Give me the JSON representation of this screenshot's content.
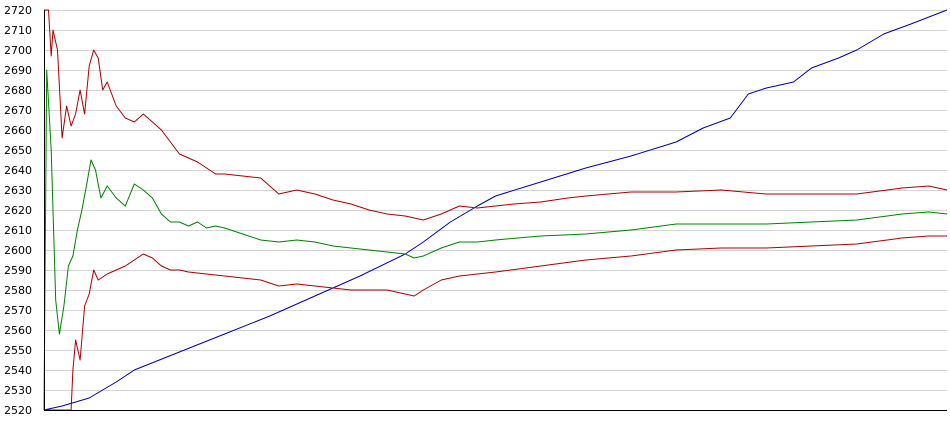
{
  "chart_data": {
    "type": "line",
    "title": "",
    "xlabel": "",
    "ylabel": "",
    "ylim": [
      2520,
      2720
    ],
    "xlim": [
      0,
      100
    ],
    "yticks": [
      2520,
      2530,
      2540,
      2550,
      2560,
      2570,
      2580,
      2590,
      2600,
      2610,
      2620,
      2630,
      2640,
      2650,
      2660,
      2670,
      2680,
      2690,
      2700,
      2710,
      2720
    ],
    "grid": "horizontal",
    "legend": "none",
    "series": [
      {
        "color": "#0000aa",
        "points": [
          [
            0,
            2520
          ],
          [
            2,
            2522
          ],
          [
            5,
            2526
          ],
          [
            8,
            2534
          ],
          [
            10,
            2540
          ],
          [
            15,
            2549
          ],
          [
            20,
            2558
          ],
          [
            25,
            2567
          ],
          [
            30,
            2577
          ],
          [
            35,
            2587
          ],
          [
            40,
            2598
          ],
          [
            42,
            2604
          ],
          [
            45,
            2614
          ],
          [
            48,
            2622
          ],
          [
            50,
            2627
          ],
          [
            55,
            2634
          ],
          [
            60,
            2641
          ],
          [
            65,
            2647
          ],
          [
            70,
            2654
          ],
          [
            73,
            2661
          ],
          [
            76,
            2666
          ],
          [
            78,
            2678
          ],
          [
            80,
            2681
          ],
          [
            83,
            2684
          ],
          [
            85,
            2691
          ],
          [
            88,
            2696
          ],
          [
            90,
            2700
          ],
          [
            93,
            2708
          ],
          [
            96,
            2713
          ],
          [
            100,
            2720
          ]
        ]
      },
      {
        "color": "#008000",
        "points": [
          [
            0,
            2520
          ],
          [
            0.3,
            2690
          ],
          [
            0.8,
            2650
          ],
          [
            1.3,
            2575
          ],
          [
            1.7,
            2558
          ],
          [
            2.2,
            2572
          ],
          [
            2.7,
            2592
          ],
          [
            3.2,
            2597
          ],
          [
            3.7,
            2610
          ],
          [
            4.2,
            2620
          ],
          [
            4.7,
            2632
          ],
          [
            5.2,
            2645
          ],
          [
            5.7,
            2640
          ],
          [
            6.3,
            2626
          ],
          [
            7,
            2632
          ],
          [
            8,
            2626
          ],
          [
            9,
            2622
          ],
          [
            10,
            2633
          ],
          [
            11,
            2630
          ],
          [
            12,
            2626
          ],
          [
            13,
            2618
          ],
          [
            14,
            2614
          ],
          [
            15,
            2614
          ],
          [
            16,
            2612
          ],
          [
            17,
            2614
          ],
          [
            18,
            2611
          ],
          [
            19,
            2612
          ],
          [
            20,
            2611
          ],
          [
            22,
            2608
          ],
          [
            24,
            2605
          ],
          [
            26,
            2604
          ],
          [
            28,
            2605
          ],
          [
            30,
            2604
          ],
          [
            32,
            2602
          ],
          [
            34,
            2601
          ],
          [
            36,
            2600
          ],
          [
            38,
            2599
          ],
          [
            40,
            2598
          ],
          [
            41,
            2596
          ],
          [
            42,
            2597
          ],
          [
            44,
            2601
          ],
          [
            46,
            2604
          ],
          [
            48,
            2604
          ],
          [
            50,
            2605
          ],
          [
            55,
            2607
          ],
          [
            60,
            2608
          ],
          [
            65,
            2610
          ],
          [
            70,
            2613
          ],
          [
            75,
            2613
          ],
          [
            80,
            2613
          ],
          [
            85,
            2614
          ],
          [
            90,
            2615
          ],
          [
            95,
            2618
          ],
          [
            98,
            2619
          ],
          [
            100,
            2618
          ]
        ]
      },
      {
        "color": "#aa0000",
        "points": [
          [
            0,
            2720
          ],
          [
            0.5,
            2720
          ],
          [
            0.8,
            2697
          ],
          [
            1,
            2710
          ],
          [
            1.5,
            2700
          ],
          [
            2,
            2656
          ],
          [
            2.5,
            2672
          ],
          [
            3,
            2662
          ],
          [
            3.5,
            2668
          ],
          [
            4,
            2680
          ],
          [
            4.5,
            2668
          ],
          [
            5,
            2692
          ],
          [
            5.5,
            2700
          ],
          [
            6,
            2696
          ],
          [
            6.5,
            2680
          ],
          [
            7,
            2684
          ],
          [
            8,
            2672
          ],
          [
            9,
            2666
          ],
          [
            10,
            2664
          ],
          [
            11,
            2668
          ],
          [
            12,
            2664
          ],
          [
            13,
            2660
          ],
          [
            14,
            2654
          ],
          [
            15,
            2648
          ],
          [
            16,
            2646
          ],
          [
            17,
            2644
          ],
          [
            18,
            2641
          ],
          [
            19,
            2638
          ],
          [
            20,
            2638
          ],
          [
            22,
            2637
          ],
          [
            24,
            2636
          ],
          [
            26,
            2628
          ],
          [
            28,
            2630
          ],
          [
            30,
            2628
          ],
          [
            32,
            2625
          ],
          [
            34,
            2623
          ],
          [
            36,
            2620
          ],
          [
            38,
            2618
          ],
          [
            40,
            2617
          ],
          [
            42,
            2615
          ],
          [
            44,
            2618
          ],
          [
            46,
            2622
          ],
          [
            48,
            2621
          ],
          [
            50,
            2622
          ],
          [
            52,
            2623
          ],
          [
            55,
            2624
          ],
          [
            58,
            2626
          ],
          [
            60,
            2627
          ],
          [
            65,
            2629
          ],
          [
            70,
            2629
          ],
          [
            75,
            2630
          ],
          [
            80,
            2628
          ],
          [
            85,
            2628
          ],
          [
            90,
            2628
          ],
          [
            95,
            2631
          ],
          [
            98,
            2632
          ],
          [
            100,
            2630
          ]
        ]
      },
      {
        "color": "#aa0000",
        "points": [
          [
            0,
            2520
          ],
          [
            2.5,
            2520
          ],
          [
            3,
            2520
          ],
          [
            3.2,
            2540
          ],
          [
            3.5,
            2555
          ],
          [
            4,
            2545
          ],
          [
            4.5,
            2572
          ],
          [
            5,
            2578
          ],
          [
            5.5,
            2590
          ],
          [
            6,
            2585
          ],
          [
            7,
            2588
          ],
          [
            8,
            2590
          ],
          [
            9,
            2592
          ],
          [
            10,
            2595
          ],
          [
            11,
            2598
          ],
          [
            12,
            2596
          ],
          [
            13,
            2592
          ],
          [
            14,
            2590
          ],
          [
            15,
            2590
          ],
          [
            16,
            2589
          ],
          [
            18,
            2588
          ],
          [
            20,
            2587
          ],
          [
            22,
            2586
          ],
          [
            24,
            2585
          ],
          [
            26,
            2582
          ],
          [
            28,
            2583
          ],
          [
            30,
            2582
          ],
          [
            32,
            2581
          ],
          [
            34,
            2580
          ],
          [
            36,
            2580
          ],
          [
            38,
            2580
          ],
          [
            40,
            2578
          ],
          [
            41,
            2577
          ],
          [
            42,
            2580
          ],
          [
            44,
            2585
          ],
          [
            46,
            2587
          ],
          [
            48,
            2588
          ],
          [
            50,
            2589
          ],
          [
            55,
            2592
          ],
          [
            60,
            2595
          ],
          [
            65,
            2597
          ],
          [
            70,
            2600
          ],
          [
            75,
            2601
          ],
          [
            80,
            2601
          ],
          [
            85,
            2602
          ],
          [
            90,
            2603
          ],
          [
            95,
            2606
          ],
          [
            98,
            2607
          ],
          [
            100,
            2607
          ]
        ]
      }
    ]
  }
}
